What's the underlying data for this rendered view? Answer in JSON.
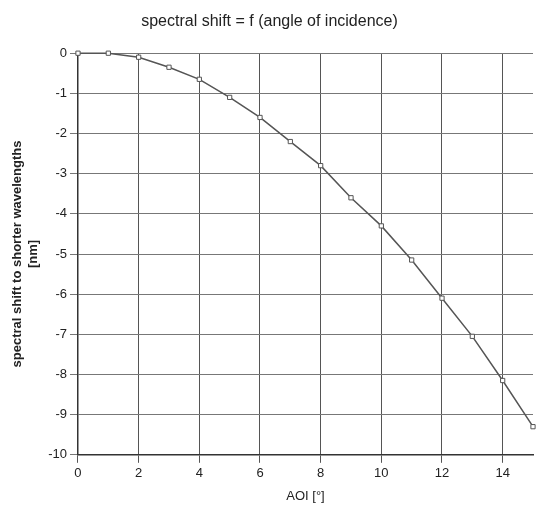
{
  "chart_data": {
    "type": "line",
    "title": "spectral shift = f (angle of incidence)",
    "x_label": "AOI [°]",
    "y_label": [
      "spectral shift to shorter wavelengths",
      "[nm]"
    ],
    "x": [
      0,
      1,
      2,
      3,
      4,
      5,
      6,
      7,
      8,
      9,
      10,
      11,
      12,
      13,
      14,
      15
    ],
    "values": [
      0,
      0,
      -0.1,
      -0.35,
      -0.65,
      -1.1,
      -1.6,
      -2.2,
      -2.8,
      -3.6,
      -4.3,
      -5.15,
      -6.1,
      -7.05,
      -8.15,
      -9.3
    ],
    "color": "#555555",
    "marker": "square",
    "line_style": "solid",
    "xlim": [
      0,
      15
    ],
    "xticks": [
      0,
      2,
      4,
      6,
      8,
      10,
      12,
      14
    ],
    "ylim": [
      -10,
      0
    ],
    "yticks": [
      -10,
      -9,
      -8,
      -7,
      -6,
      -5,
      -4,
      -3,
      -2,
      -1,
      0
    ],
    "grid": true
  }
}
